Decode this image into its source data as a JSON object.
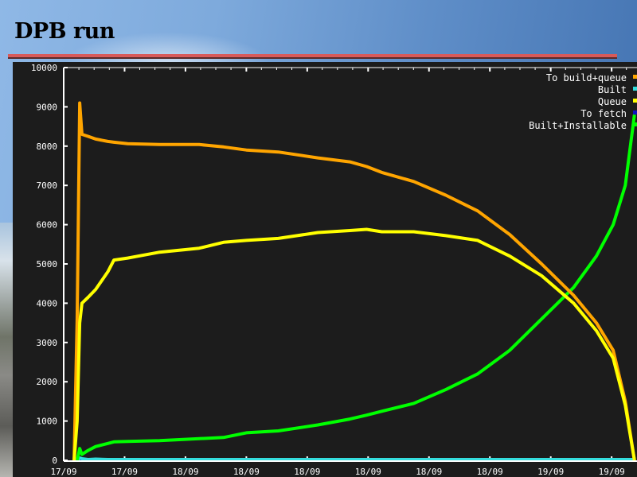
{
  "slide": {
    "title": "DPB run"
  },
  "colors": {
    "rule": "#d85a5a",
    "plot_background": "#1c1c1c",
    "axis": "#ffffff"
  },
  "chart_data": {
    "type": "line",
    "title": "",
    "xlabel": "",
    "ylabel": "",
    "ylim": [
      0,
      10000
    ],
    "yticks": [
      0,
      1000,
      2000,
      3000,
      4000,
      5000,
      6000,
      7000,
      8000,
      9000,
      10000
    ],
    "xlim": [
      "17/09 16:00",
      "19/09 05:40"
    ],
    "xtick_labels": [
      "17/09",
      "17/09",
      "18/09",
      "18/09",
      "18/09",
      "18/09",
      "18/09",
      "18/09",
      "19/09",
      "19/09"
    ],
    "xticks": [
      "17/09 16:00",
      "17/09 20:00",
      "18/09 00:00",
      "18/09 04:00",
      "18/09 08:00",
      "18/09 12:00",
      "18/09 16:00",
      "18/09 20:00",
      "19/09 00:00",
      "19/09 04:00"
    ],
    "grid": false,
    "legend_position": "top-right",
    "x": [
      "17/09 16:41",
      "17/09 16:53",
      "17/09 17:03",
      "17/09 17:12",
      "17/09 17:36",
      "17/09 18:06",
      "17/09 18:54",
      "17/09 19:18",
      "17/09 20:12",
      "17/09 22:18",
      "18/09 00:54",
      "18/09 02:30",
      "18/09 04:00",
      "18/09 06:06",
      "18/09 08:42",
      "18/09 10:48",
      "18/09 11:54",
      "18/09 12:54",
      "18/09 15:00",
      "18/09 17:06",
      "18/09 19:12",
      "18/09 21:18",
      "18/09 23:24",
      "19/09 01:30",
      "19/09 03:00",
      "19/09 04:06",
      "19/09 04:54",
      "19/09 05:30"
    ],
    "series": [
      {
        "name": "To build+queue",
        "color": "#ffa500",
        "values": [
          0,
          3600,
          9100,
          8300,
          8250,
          8180,
          8120,
          8100,
          8060,
          8040,
          8040,
          7980,
          7900,
          7850,
          7700,
          7600,
          7480,
          7330,
          7100,
          6750,
          6350,
          5750,
          5000,
          4200,
          3500,
          2800,
          1500,
          0
        ]
      },
      {
        "name": "Built",
        "color": "#33dddd",
        "values": [
          0,
          0,
          60,
          40,
          20,
          30,
          20,
          20,
          20,
          20,
          20,
          20,
          20,
          20,
          20,
          20,
          20,
          20,
          20,
          20,
          20,
          20,
          20,
          20,
          20,
          20,
          20,
          20
        ]
      },
      {
        "name": "Queue",
        "color": "#ffff00",
        "values": [
          0,
          1000,
          3500,
          4000,
          4150,
          4350,
          4800,
          5100,
          5150,
          5300,
          5400,
          5550,
          5600,
          5650,
          5800,
          5850,
          5880,
          5820,
          5820,
          5720,
          5600,
          5200,
          4700,
          4000,
          3300,
          2600,
          1400,
          0
        ]
      },
      {
        "name": "To fetch",
        "color": "#1010c0",
        "values": [
          0,
          30,
          30,
          30,
          30,
          30,
          30,
          30,
          30,
          30,
          30,
          30,
          30,
          30,
          30,
          30,
          30,
          30,
          30,
          30,
          30,
          30,
          30,
          30,
          30,
          30,
          30,
          30
        ]
      },
      {
        "name": "Built+Installable",
        "color": "#00ff00",
        "values": [
          0,
          0,
          300,
          150,
          250,
          350,
          430,
          470,
          480,
          500,
          550,
          580,
          700,
          750,
          900,
          1050,
          1150,
          1250,
          1450,
          1800,
          2200,
          2800,
          3600,
          4400,
          5200,
          6000,
          7000,
          8800
        ]
      }
    ]
  }
}
